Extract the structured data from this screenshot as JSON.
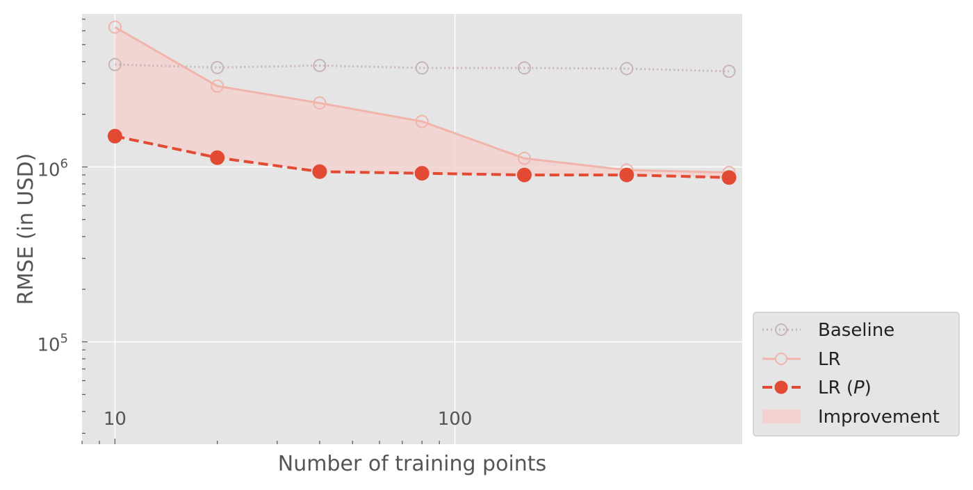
{
  "chart_data": {
    "type": "line",
    "xlabel": "Number of training points",
    "ylabel": "RMSE (in USD)",
    "x_scale": "log",
    "y_scale": "log",
    "xlim": [
      8,
      700
    ],
    "ylim": [
      26000,
      7500000
    ],
    "x_ticks": [
      {
        "value": 10,
        "label": "10"
      },
      {
        "value": 100,
        "label": "100"
      }
    ],
    "y_ticks": [
      {
        "value": 100000,
        "base": "10",
        "exp": "5"
      },
      {
        "value": 1000000,
        "base": "10",
        "exp": "6"
      }
    ],
    "grid": true,
    "legend_position": "lower-right-outside",
    "x": [
      10,
      20,
      40,
      80,
      160,
      320,
      640
    ],
    "series": [
      {
        "name": "Baseline",
        "values": [
          3850000,
          3700000,
          3800000,
          3680000,
          3680000,
          3650000,
          3520000
        ],
        "style": "dotted",
        "marker": "open-circle",
        "color": "#c8b4b4"
      },
      {
        "name": "LR",
        "values": [
          6300000,
          2900000,
          2320000,
          1820000,
          1120000,
          960000,
          930000
        ],
        "style": "solid",
        "marker": "open-circle",
        "color": "#f0b4aa"
      },
      {
        "name": "LR (P)",
        "name_main": "LR (",
        "name_italic": "P",
        "name_end": ")",
        "values": [
          1500000,
          1130000,
          940000,
          920000,
          900000,
          900000,
          870000
        ],
        "style": "dashed",
        "marker": "filled-circle",
        "color": "#e24a33"
      }
    ],
    "fill": {
      "name": "Improvement",
      "between": [
        "LR",
        "LR (P)"
      ],
      "color": "#f2d2cf"
    },
    "colors": {
      "plot_bg": "#e5e5e5",
      "grid": "#ffffff",
      "legend_bg": "#e5e5e5",
      "legend_border": "#cccccc"
    }
  }
}
